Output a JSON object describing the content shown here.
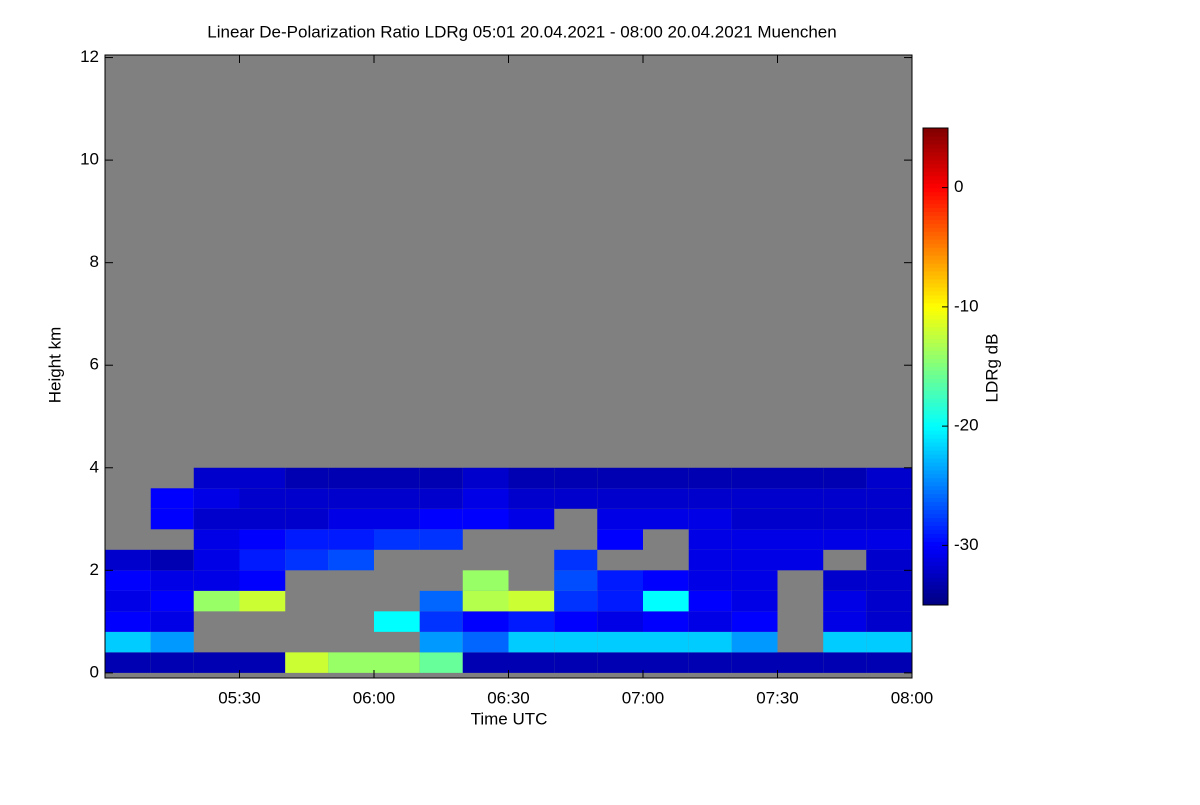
{
  "chart_data": {
    "type": "heatmap",
    "title": "Linear De-Polarization Ratio LDRg   05:01 20.04.2021 - 08:00 20.04.2021 Muenchen",
    "x_label": "Time UTC",
    "y_label": "Height km",
    "colorbar_label": "LDRg dB",
    "xlim": [
      5.0,
      8.0
    ],
    "xticks": [
      {
        "value": 5.5,
        "label": "05:30"
      },
      {
        "value": 6.0,
        "label": "06:00"
      },
      {
        "value": 6.5,
        "label": "06:30"
      },
      {
        "value": 7.0,
        "label": "07:00"
      },
      {
        "value": 7.5,
        "label": "07:30"
      },
      {
        "value": 8.0,
        "label": "08:00"
      }
    ],
    "ylim": [
      -0.1,
      12.05
    ],
    "yticks": [
      0,
      2,
      4,
      6,
      8,
      10,
      12
    ],
    "zlim": [
      -35,
      5
    ],
    "zticks": [
      0,
      -10,
      -20,
      -30
    ],
    "colormap": "jet",
    "background": "#808080",
    "x": [
      5.0,
      5.17,
      5.33,
      5.5,
      5.67,
      5.83,
      6.0,
      6.17,
      6.33,
      6.5,
      6.67,
      6.83,
      7.0,
      7.17,
      7.33,
      7.5,
      7.67,
      7.83
    ],
    "y": [
      0,
      0.4,
      0.8,
      1.2,
      1.6,
      2.0,
      2.4,
      2.8,
      3.2,
      3.6
    ],
    "z": [
      [
        -33,
        -33,
        -33,
        -33,
        -12,
        -14,
        -14,
        -16,
        -33,
        -33,
        -33,
        -33,
        -33,
        -33,
        -33,
        -33,
        -33,
        -33
      ],
      [
        -22,
        -24,
        null,
        null,
        null,
        null,
        null,
        -24,
        -26,
        -22,
        -22,
        -22,
        -22,
        -22,
        -24,
        null,
        -22,
        -22
      ],
      [
        -30,
        -31,
        null,
        null,
        null,
        null,
        -20,
        -28,
        -30,
        -29,
        -30,
        -31,
        -30,
        -31,
        -30,
        null,
        -31,
        -32
      ],
      [
        -31,
        -30,
        -14,
        -12,
        null,
        null,
        null,
        -26,
        -13,
        -12,
        -28,
        -29,
        -20,
        -30,
        -31,
        null,
        -31,
        -32
      ],
      [
        -30,
        -31,
        -31,
        -30,
        null,
        null,
        null,
        null,
        -14,
        null,
        -27,
        -29,
        -30,
        -31,
        -31,
        null,
        -32,
        -32
      ],
      [
        -32,
        -33,
        -31,
        -29,
        -28,
        -27,
        null,
        null,
        null,
        null,
        -28,
        null,
        null,
        -31,
        -31,
        -31,
        null,
        -32
      ],
      [
        null,
        null,
        -31,
        -30,
        -29,
        -29,
        -28,
        -28,
        null,
        null,
        null,
        -30,
        null,
        -31,
        -31,
        -31,
        -31,
        -31
      ],
      [
        null,
        -30,
        -32,
        -32,
        -32,
        -31,
        -31,
        -30,
        -30,
        -31,
        null,
        -31,
        -31,
        -31,
        -32,
        -32,
        -32,
        -32
      ],
      [
        null,
        -30,
        -31,
        -32,
        -32,
        -32,
        -32,
        -32,
        -31,
        -32,
        -32,
        -32,
        -32,
        -32,
        -32,
        -32,
        -32,
        -32
      ],
      [
        null,
        null,
        -32,
        -32,
        -33,
        -33,
        -33,
        -33,
        -32,
        -33,
        -33,
        -33,
        -33,
        -33,
        -33,
        -33,
        -33,
        -32
      ]
    ]
  }
}
